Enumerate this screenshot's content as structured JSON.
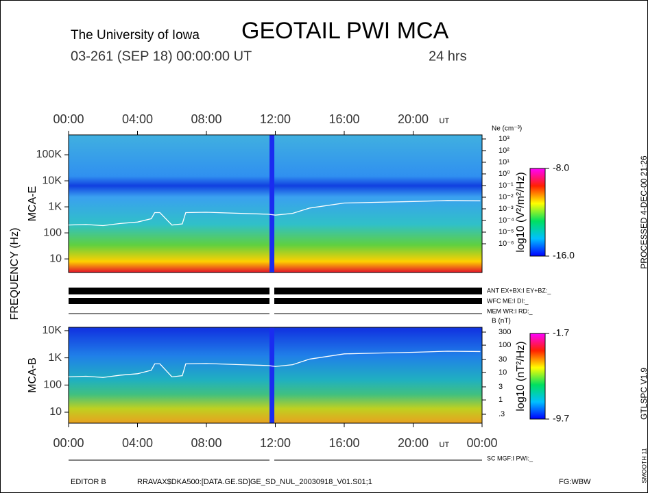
{
  "header": {
    "institution": "The University of Iowa",
    "title": "GEOTAIL PWI MCA",
    "date": "03-261 (SEP 18) 00:00:00 UT",
    "span": "24 hrs"
  },
  "y_label": "FREQUENCY (Hz)",
  "side_labels": {
    "processed": "PROCESSED 4-DEC-00 21:26",
    "program": "GTLSPC V1.9",
    "smooth": "SMOOTH 11"
  },
  "chart_data": [
    {
      "type": "spectrogram",
      "panel_label": "MCA-E",
      "x_unit": "UT",
      "xlim": [
        0,
        24
      ],
      "xticks": [
        {
          "value": 0,
          "label": "00:00"
        },
        {
          "value": 4,
          "label": "04:00"
        },
        {
          "value": 8,
          "label": "08:00"
        },
        {
          "value": 12,
          "label": "12:00"
        },
        {
          "value": 16,
          "label": "16:00"
        },
        {
          "value": 20,
          "label": "20:00"
        }
      ],
      "log_y": true,
      "ylim": [
        3,
        580000
      ],
      "yticks": [
        10,
        100,
        {
          "value": 1000,
          "label": "1K"
        },
        {
          "value": 10000,
          "label": "10K"
        },
        {
          "value": 100000,
          "label": "100K"
        }
      ],
      "y2_label": "Ne (cm⁻³)",
      "y2lim": [
        3.4e-09,
        2240
      ],
      "y2ticks": [
        {
          "value": 1000,
          "label": "10³"
        },
        {
          "value": 100,
          "label": "10²"
        },
        {
          "value": 10,
          "label": "10¹"
        },
        {
          "value": 1,
          "label": "10⁰"
        },
        {
          "value": 0.1,
          "label": "10⁻¹"
        },
        {
          "value": 0.01,
          "label": "10⁻²"
        },
        {
          "value": 0.001,
          "label": "10⁻³"
        },
        {
          "value": 0.0001,
          "label": "10⁻⁴"
        },
        {
          "value": 1e-05,
          "label": "10⁻⁵"
        },
        {
          "value": 1e-06,
          "label": "10⁻⁶"
        }
      ],
      "colorbar": {
        "label": "log10 (V²/m²/Hz)",
        "clim": [
          -16,
          -8
        ],
        "cticks": [
          {
            "value": -8,
            "label": "-8.0"
          },
          {
            "value": -16,
            "label": "-16.0"
          }
        ]
      },
      "trace": {
        "color": "#ffffff",
        "x": [
          0,
          1,
          2,
          3,
          4,
          4.8,
          5,
          5.3,
          6,
          6.6,
          6.8,
          8,
          10,
          11.6,
          12,
          13,
          14,
          16,
          18,
          20,
          22,
          23.9
        ],
        "values": [
          200,
          210,
          190,
          230,
          260,
          350,
          600,
          600,
          200,
          220,
          600,
          620,
          560,
          520,
          480,
          560,
          900,
          1400,
          1500,
          1600,
          1750,
          1700
        ]
      }
    },
    {
      "type": "spectrogram",
      "panel_label": "MCA-B",
      "x_unit": "UT",
      "xlim": [
        0,
        24
      ],
      "xticks": [
        {
          "value": 0,
          "label": "00:00"
        },
        {
          "value": 4,
          "label": "04:00"
        },
        {
          "value": 8,
          "label": "08:00"
        },
        {
          "value": 12,
          "label": "12:00"
        },
        {
          "value": 16,
          "label": "16:00"
        },
        {
          "value": 20,
          "label": "20:00"
        },
        {
          "value": 24,
          "label": "00:00"
        }
      ],
      "log_y": true,
      "ylim": [
        3.95,
        13300
      ],
      "yticks": [
        10,
        100,
        {
          "value": 1000,
          "label": "1K"
        },
        {
          "value": 10000,
          "label": "10K"
        }
      ],
      "y2_label": "B (nT)",
      "y2lim": [
        0.142,
        449
      ],
      "y2ticks": [
        300,
        100,
        30,
        10,
        3,
        1,
        {
          "value": 0.3,
          "label": ".3"
        }
      ],
      "colorbar": {
        "label": "log10 (nT²/Hz)",
        "clim": [
          -9.7,
          -1.7
        ],
        "cticks": [
          {
            "value": -1.7,
            "label": "-1.7"
          },
          {
            "value": -9.7,
            "label": "-9.7"
          }
        ]
      },
      "trace": {
        "color": "#ffffff",
        "x": [
          0,
          1,
          2,
          3,
          4,
          4.8,
          5,
          5.3,
          6,
          6.6,
          6.8,
          8,
          10,
          11.6,
          12,
          13,
          14,
          16,
          18,
          20,
          22,
          23.9
        ],
        "values": [
          200,
          210,
          190,
          230,
          260,
          350,
          600,
          600,
          200,
          220,
          600,
          620,
          560,
          520,
          480,
          560,
          900,
          1400,
          1500,
          1600,
          1750,
          1700
        ]
      }
    }
  ],
  "status": {
    "ant": "ANT EX+BX:I  EY+BZ:_",
    "wfc": "WFC ME:I    DI:_",
    "mem": "MEM WR:I    RD:_",
    "sc": "SC MGF:I   PWI:_"
  },
  "footer": {
    "editor": "EDITOR B",
    "file": "RRAVAX$DKA500:[DATA.GE.SD]GE_SD_NUL_20030918_V01.S01;1",
    "fg": "FG:WBW"
  }
}
